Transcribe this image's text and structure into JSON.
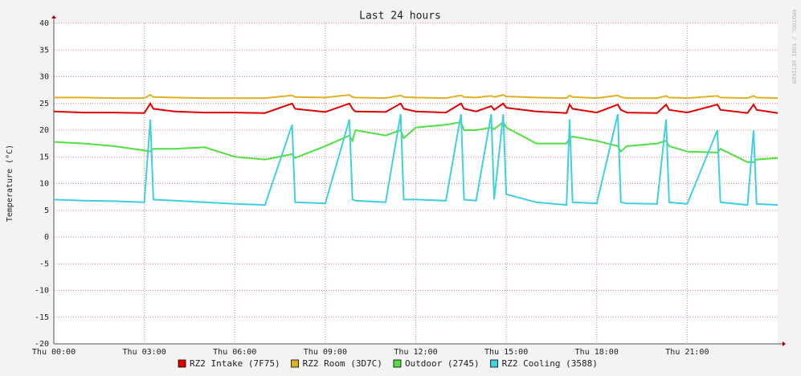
{
  "chart_data": {
    "type": "line",
    "title": "Last 24 hours",
    "y_label": "Temperature (°C)",
    "watermark": "RRDTOOL / TOBI OETIKER",
    "x": [
      0,
      1,
      2,
      3,
      3.2,
      3.3,
      4,
      5,
      6,
      7,
      7.9,
      8.0,
      9,
      9.8,
      9.9,
      10,
      11,
      11.5,
      11.6,
      12,
      13,
      13.5,
      13.6,
      14,
      14.5,
      14.6,
      14.9,
      15.0,
      16,
      17,
      17.1,
      17.2,
      18,
      18.7,
      18.8,
      19,
      20,
      20.3,
      20.4,
      21,
      22,
      22.1,
      23,
      23.2,
      23.3,
      24
    ],
    "xlim": [
      0,
      24
    ],
    "xticks": [
      {
        "value": 0,
        "label": "Thu 00:00"
      },
      {
        "value": 3,
        "label": "Thu 03:00"
      },
      {
        "value": 6,
        "label": "Thu 06:00"
      },
      {
        "value": 9,
        "label": "Thu 09:00"
      },
      {
        "value": 12,
        "label": "Thu 12:00"
      },
      {
        "value": 15,
        "label": "Thu 15:00"
      },
      {
        "value": 18,
        "label": "Thu 18:00"
      },
      {
        "value": 21,
        "label": "Thu 21:00"
      }
    ],
    "ylim": [
      -20,
      40
    ],
    "yticks": [
      -20,
      -15,
      -10,
      -5,
      0,
      5,
      10,
      15,
      20,
      25,
      30,
      35,
      40
    ],
    "grid": true,
    "series": [
      {
        "name": "RZ2 Intake (7F75)",
        "color": "#e00000",
        "values": [
          23.5,
          23.3,
          23.3,
          23.2,
          25,
          24,
          23.5,
          23.3,
          23.3,
          23.2,
          25,
          24,
          23.4,
          25,
          24,
          23.5,
          23.4,
          25,
          24,
          23.5,
          23.3,
          25,
          24,
          23.5,
          24.5,
          23.8,
          25,
          24.2,
          23.5,
          23.2,
          24.8,
          24,
          23.3,
          24.8,
          23.8,
          23.3,
          23.2,
          24.8,
          23.8,
          23.3,
          24.8,
          23.8,
          23.2,
          24.8,
          23.8,
          23.2
        ]
      },
      {
        "name": "RZ2 Room (3D7C)",
        "color": "#e0b020",
        "values": [
          26.1,
          26.1,
          26.0,
          26.0,
          26.6,
          26.2,
          26.1,
          26.0,
          26.0,
          26.0,
          26.5,
          26.2,
          26.1,
          26.6,
          26.2,
          26.1,
          26.0,
          26.5,
          26.2,
          26.1,
          26.0,
          26.5,
          26.2,
          26.1,
          26.4,
          26.2,
          26.6,
          26.3,
          26.1,
          26.0,
          26.5,
          26.2,
          26.0,
          26.5,
          26.2,
          26.0,
          26.0,
          26.4,
          26.1,
          26.0,
          26.4,
          26.1,
          26.0,
          26.4,
          26.1,
          26.0
        ]
      },
      {
        "name": "Outdoor (2745)",
        "color": "#50e040",
        "values": [
          17.8,
          17.5,
          17,
          16.2,
          16,
          16.5,
          16.5,
          16.8,
          15,
          14.5,
          15.5,
          14.8,
          17,
          19,
          18,
          20,
          19,
          20,
          18.5,
          20.5,
          21,
          21.5,
          20,
          20,
          20.5,
          20.2,
          21.5,
          20.5,
          17.5,
          17.5,
          18.5,
          18.8,
          18,
          17,
          16,
          17,
          17.5,
          18,
          17,
          16,
          15.8,
          16.5,
          14,
          14,
          14.5,
          14.8
        ]
      },
      {
        "name": "RZ2 Cooling (3588)",
        "color": "#40d0e0",
        "values": [
          7,
          6.8,
          6.7,
          6.5,
          22,
          7,
          6.8,
          6.5,
          6.2,
          6,
          21,
          6.5,
          6.3,
          22,
          7,
          6.8,
          6.5,
          23,
          7,
          7,
          6.8,
          23,
          7,
          6.8,
          23,
          7,
          23,
          8,
          6.5,
          6,
          22,
          6.5,
          6.3,
          23,
          6.5,
          6.3,
          6.2,
          22,
          6.5,
          6.2,
          20,
          6.5,
          6,
          20,
          6.2,
          6
        ]
      }
    ]
  }
}
